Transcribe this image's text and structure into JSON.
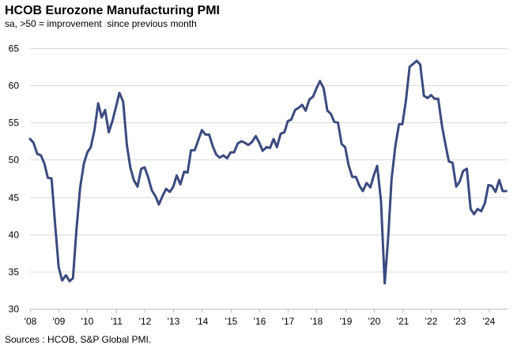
{
  "chart_data": {
    "type": "line",
    "title": "HCOB Eurozone Manufacturing PMI",
    "subtitle": "sa, >50 = improvement  since previous month",
    "source": "Sources : HCOB, S&P Global PMI.",
    "xlabel": "",
    "ylabel": "",
    "ylim": [
      30,
      65
    ],
    "yticks": [
      30,
      35,
      40,
      45,
      50,
      55,
      60,
      65
    ],
    "xlim": [
      2008.0,
      2024.67
    ],
    "xticks": [
      {
        "x": 2008,
        "label": "'08"
      },
      {
        "x": 2009,
        "label": "'09"
      },
      {
        "x": 2010,
        "label": "'10"
      },
      {
        "x": 2011,
        "label": "'11"
      },
      {
        "x": 2012,
        "label": "'12"
      },
      {
        "x": 2013,
        "label": "'13"
      },
      {
        "x": 2014,
        "label": "'14"
      },
      {
        "x": 2015,
        "label": "'15"
      },
      {
        "x": 2016,
        "label": "'16"
      },
      {
        "x": 2017,
        "label": "'17"
      },
      {
        "x": 2018,
        "label": "'18"
      },
      {
        "x": 2019,
        "label": "'19"
      },
      {
        "x": 2020,
        "label": "'20"
      },
      {
        "x": 2021,
        "label": "'21"
      },
      {
        "x": 2022,
        "label": "'22"
      },
      {
        "x": 2023,
        "label": "'23"
      },
      {
        "x": 2024,
        "label": "'24"
      }
    ],
    "grid": "horizontal",
    "line_color": "#3b4a7f",
    "series": [
      {
        "x": [
          2008.0,
          2008.12,
          2008.25,
          2008.38,
          2008.5,
          2008.62,
          2008.75,
          2008.88,
          2009.0,
          2009.12,
          2009.25,
          2009.38,
          2009.5,
          2009.62,
          2009.75,
          2009.88,
          2010.0,
          2010.12,
          2010.25,
          2010.38,
          2010.5,
          2010.62,
          2010.75,
          2010.88,
          2011.0,
          2011.12,
          2011.25,
          2011.38,
          2011.5,
          2011.62,
          2011.75,
          2011.88,
          2012.0,
          2012.12,
          2012.25,
          2012.38,
          2012.5,
          2012.62,
          2012.75,
          2012.88,
          2013.0,
          2013.12,
          2013.25,
          2013.38,
          2013.5,
          2013.62,
          2013.75,
          2013.88,
          2014.0,
          2014.12,
          2014.25,
          2014.38,
          2014.5,
          2014.62,
          2014.75,
          2014.88,
          2015.0,
          2015.12,
          2015.25,
          2015.38,
          2015.5,
          2015.62,
          2015.75,
          2015.88,
          2016.0,
          2016.12,
          2016.25,
          2016.38,
          2016.5,
          2016.62,
          2016.75,
          2016.88,
          2017.0,
          2017.12,
          2017.25,
          2017.38,
          2017.5,
          2017.62,
          2017.75,
          2017.88,
          2018.0,
          2018.12,
          2018.25,
          2018.38,
          2018.5,
          2018.62,
          2018.75,
          2018.88,
          2019.0,
          2019.12,
          2019.25,
          2019.38,
          2019.5,
          2019.62,
          2019.75,
          2019.88,
          2020.0,
          2020.12,
          2020.25,
          2020.38,
          2020.5,
          2020.62,
          2020.75,
          2020.88,
          2021.0,
          2021.12,
          2021.25,
          2021.38,
          2021.5,
          2021.62,
          2021.75,
          2021.88,
          2022.0,
          2022.12,
          2022.25,
          2022.38,
          2022.5,
          2022.62,
          2022.75,
          2022.88,
          2023.0,
          2023.12,
          2023.25,
          2023.38,
          2023.5,
          2023.62,
          2023.75,
          2023.88,
          2024.0,
          2024.12,
          2024.25,
          2024.38,
          2024.5,
          2024.62
        ],
        "values": [
          52.8,
          52.3,
          50.8,
          50.6,
          49.5,
          47.6,
          47.5,
          41.1,
          35.6,
          33.8,
          34.5,
          33.7,
          34.1,
          40.6,
          46.3,
          49.5,
          51.0,
          51.7,
          54.0,
          57.6,
          55.7,
          56.7,
          53.7,
          55.3,
          57.1,
          59.0,
          57.8,
          52.0,
          49.0,
          47.3,
          46.4,
          48.8,
          49.0,
          47.7,
          45.9,
          45.1,
          44.0,
          45.1,
          46.1,
          45.7,
          46.4,
          47.9,
          46.7,
          48.4,
          48.3,
          51.3,
          51.3,
          52.7,
          54.0,
          53.4,
          53.4,
          51.8,
          50.7,
          50.3,
          50.6,
          50.2,
          51.0,
          51.0,
          52.2,
          52.5,
          52.3,
          52.0,
          52.4,
          53.2,
          52.3,
          51.2,
          51.7,
          51.6,
          52.8,
          51.7,
          53.5,
          53.7,
          55.2,
          55.4,
          56.7,
          57.0,
          57.4,
          56.6,
          58.1,
          58.5,
          59.6,
          60.6,
          59.6,
          56.6,
          56.2,
          55.1,
          55.0,
          52.1,
          51.7,
          49.3,
          47.7,
          47.7,
          46.5,
          45.8,
          46.9,
          46.3,
          47.9,
          49.2,
          44.5,
          33.4,
          39.4,
          47.4,
          51.8,
          54.8,
          54.8,
          57.9,
          62.5,
          62.9,
          63.3,
          62.8,
          58.6,
          58.3,
          58.7,
          58.2,
          58.2,
          54.6,
          52.1,
          49.8,
          49.6,
          46.4,
          47.1,
          48.5,
          48.8,
          43.4,
          42.7,
          43.4,
          43.1,
          44.2,
          46.6,
          46.5,
          45.7,
          47.3,
          45.8,
          45.8
        ]
      }
    ]
  }
}
